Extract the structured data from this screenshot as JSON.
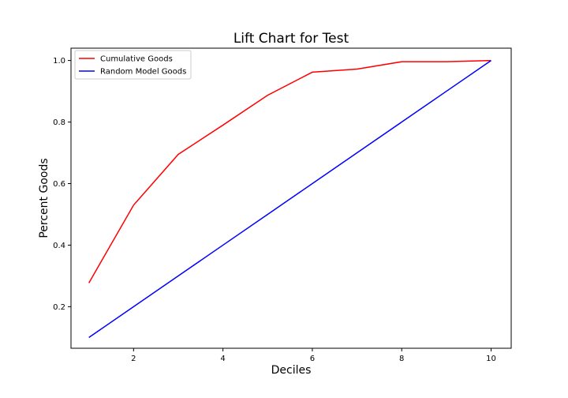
{
  "chart_data": {
    "type": "line",
    "title": "Lift Chart for Test",
    "xlabel": "Deciles",
    "ylabel": "Percent Goods",
    "xlim": [
      0.6,
      10.45
    ],
    "ylim": [
      0.065,
      1.04
    ],
    "xticks": [
      2,
      4,
      6,
      8,
      10
    ],
    "yticks": [
      0.2,
      0.4,
      0.6,
      0.8,
      1.0
    ],
    "ytick_labels": [
      "0.2",
      "0.4",
      "0.6",
      "0.8",
      "1.0"
    ],
    "grid": false,
    "legend_position": "top-left",
    "x": [
      1,
      2,
      3,
      4,
      5,
      6,
      7,
      8,
      9,
      10
    ],
    "series": [
      {
        "name": "Cumulative Goods",
        "color": "#ff0000",
        "values": [
          0.277,
          0.53,
          0.695,
          0.79,
          0.887,
          0.962,
          0.972,
          0.996,
          0.996,
          1.0
        ]
      },
      {
        "name": "Random Model Goods",
        "color": "#0000ff",
        "values": [
          0.1,
          0.2,
          0.3,
          0.4,
          0.5,
          0.6,
          0.7,
          0.8,
          0.9,
          1.0
        ]
      }
    ]
  }
}
